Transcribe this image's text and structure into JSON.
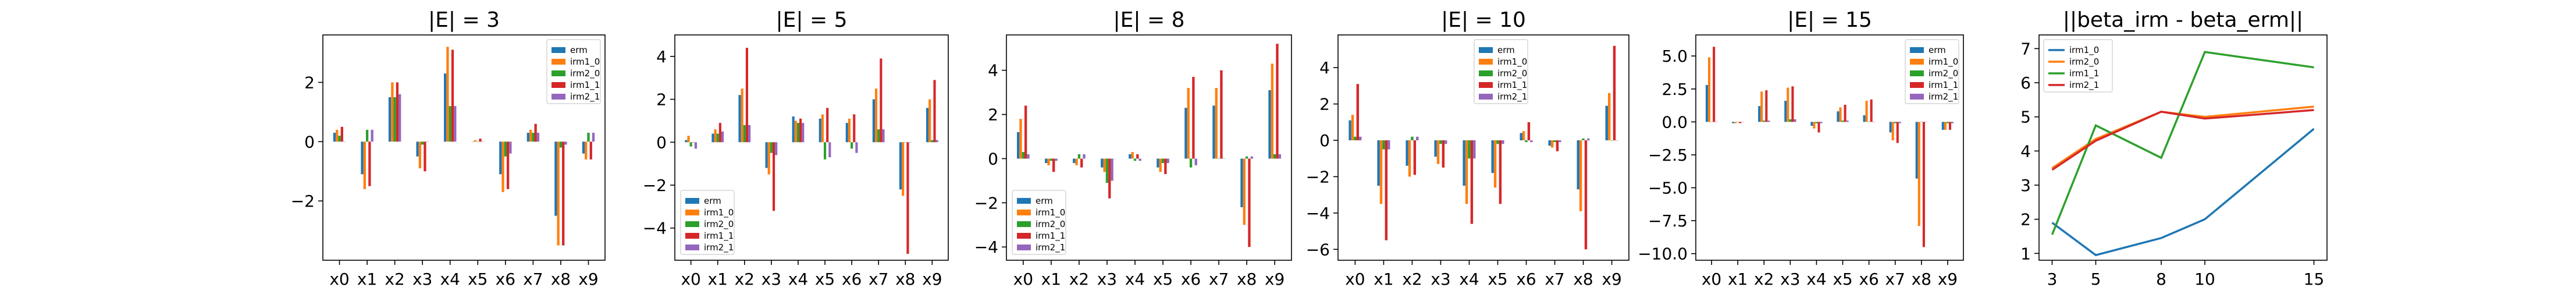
{
  "colors": {
    "erm": "#1f77b4",
    "irm1_0": "#ff7f0e",
    "irm2_0": "#2ca02c",
    "irm1_1": "#d62728",
    "irm2_1": "#9467bd"
  },
  "chart_data": [
    {
      "type": "bar",
      "title": "|E| = 3",
      "categories": [
        "x0",
        "x1",
        "x2",
        "x3",
        "x4",
        "x5",
        "x6",
        "x7",
        "x8",
        "x9"
      ],
      "ylim": [
        -4.0,
        3.6
      ],
      "yticks": [
        -2,
        0,
        2
      ],
      "grid": false,
      "legend_position": "top-right",
      "series": [
        {
          "name": "erm",
          "values": [
            0.3,
            -1.1,
            1.5,
            -0.5,
            2.3,
            0.0,
            -1.1,
            0.3,
            -2.5,
            -0.4
          ]
        },
        {
          "name": "irm1_0",
          "values": [
            0.4,
            -1.6,
            2.0,
            -0.9,
            3.2,
            0.05,
            -1.7,
            0.4,
            -3.5,
            -0.6
          ]
        },
        {
          "name": "irm2_0",
          "values": [
            0.2,
            0.4,
            1.5,
            -0.1,
            1.2,
            0.0,
            -0.5,
            0.3,
            -0.2,
            0.3
          ]
        },
        {
          "name": "irm1_1",
          "values": [
            0.5,
            -1.5,
            2.0,
            -1.0,
            3.1,
            0.1,
            -1.6,
            0.6,
            -3.5,
            -0.6
          ]
        },
        {
          "name": "irm2_1",
          "values": [
            0.0,
            0.4,
            1.6,
            0.0,
            1.2,
            0.0,
            -0.4,
            0.3,
            -0.1,
            0.3
          ]
        }
      ]
    },
    {
      "type": "bar",
      "title": "|E| = 5",
      "categories": [
        "x0",
        "x1",
        "x2",
        "x3",
        "x4",
        "x5",
        "x6",
        "x7",
        "x8",
        "x9"
      ],
      "ylim": [
        -5.5,
        5.0
      ],
      "yticks": [
        -4,
        -2,
        0,
        2,
        4
      ],
      "grid": false,
      "legend_position": "bottom-left",
      "series": [
        {
          "name": "erm",
          "values": [
            0.1,
            0.4,
            2.2,
            -1.2,
            1.2,
            1.1,
            0.9,
            2.0,
            -2.2,
            1.6
          ]
        },
        {
          "name": "irm1_0",
          "values": [
            0.3,
            0.6,
            2.5,
            -1.5,
            1.0,
            1.3,
            1.1,
            2.5,
            -2.5,
            2.0
          ]
        },
        {
          "name": "irm2_0",
          "values": [
            -0.2,
            0.4,
            0.8,
            -0.5,
            0.9,
            -0.8,
            -0.3,
            0.6,
            0.0,
            0.1
          ]
        },
        {
          "name": "irm1_1",
          "values": [
            0.0,
            0.9,
            4.4,
            -3.2,
            1.1,
            1.6,
            1.3,
            3.9,
            -5.2,
            2.9
          ]
        },
        {
          "name": "irm2_1",
          "values": [
            -0.3,
            0.5,
            0.8,
            -0.6,
            0.9,
            -0.7,
            -0.5,
            0.6,
            0.0,
            0.1
          ]
        }
      ]
    },
    {
      "type": "bar",
      "title": "|E| = 8",
      "categories": [
        "x0",
        "x1",
        "x2",
        "x3",
        "x4",
        "x5",
        "x6",
        "x7",
        "x8",
        "x9"
      ],
      "ylim": [
        -4.6,
        5.6
      ],
      "yticks": [
        -4,
        -2,
        0,
        2,
        4
      ],
      "grid": false,
      "legend_position": "bottom-left",
      "series": [
        {
          "name": "erm",
          "values": [
            1.2,
            -0.2,
            -0.2,
            -0.4,
            0.2,
            -0.4,
            2.3,
            2.4,
            -2.2,
            3.1
          ]
        },
        {
          "name": "irm1_0",
          "values": [
            1.8,
            -0.3,
            -0.3,
            -0.6,
            0.3,
            -0.6,
            3.2,
            3.2,
            -3.0,
            4.3
          ]
        },
        {
          "name": "irm2_0",
          "values": [
            0.3,
            -0.1,
            0.2,
            -1.1,
            -0.1,
            -0.2,
            -0.4,
            0.0,
            0.1,
            0.2
          ]
        },
        {
          "name": "irm1_1",
          "values": [
            2.4,
            -0.6,
            -0.4,
            -1.8,
            0.2,
            -0.7,
            3.7,
            4.0,
            -4.0,
            5.2
          ]
        },
        {
          "name": "irm2_1",
          "values": [
            0.2,
            -0.1,
            0.2,
            -1.0,
            -0.1,
            -0.2,
            -0.3,
            0.0,
            0.1,
            0.2
          ]
        }
      ]
    },
    {
      "type": "bar",
      "title": "|E| = 10",
      "categories": [
        "x0",
        "x1",
        "x2",
        "x3",
        "x4",
        "x5",
        "x6",
        "x7",
        "x8",
        "x9"
      ],
      "ylim": [
        -6.6,
        5.8
      ],
      "yticks": [
        -6,
        -4,
        -2,
        0,
        2,
        4
      ],
      "grid": false,
      "legend_position": "top-center",
      "series": [
        {
          "name": "erm",
          "values": [
            1.1,
            -2.5,
            -1.4,
            -0.9,
            -2.5,
            -1.8,
            0.4,
            -0.3,
            -2.7,
            1.9
          ]
        },
        {
          "name": "irm1_0",
          "values": [
            1.4,
            -3.5,
            -2.0,
            -1.3,
            -3.5,
            -2.6,
            0.5,
            -0.4,
            -3.9,
            2.6
          ]
        },
        {
          "name": "irm2_0",
          "values": [
            0.2,
            -0.5,
            0.2,
            -0.2,
            -1.0,
            -0.2,
            -0.1,
            -0.1,
            0.1,
            0.0
          ]
        },
        {
          "name": "irm1_1",
          "values": [
            3.1,
            -5.5,
            -1.9,
            -1.5,
            -4.6,
            -3.5,
            1.0,
            -0.6,
            -6.0,
            5.2
          ]
        },
        {
          "name": "irm2_1",
          "values": [
            0.2,
            -0.5,
            0.2,
            -0.2,
            -1.0,
            -0.2,
            -0.1,
            -0.1,
            0.1,
            0.0
          ]
        }
      ]
    },
    {
      "type": "bar",
      "title": "|E| = 15",
      "categories": [
        "x0",
        "x1",
        "x2",
        "x3",
        "x4",
        "x5",
        "x6",
        "x7",
        "x8",
        "x9"
      ],
      "ylim": [
        -10.5,
        6.6
      ],
      "yticks": [
        -10.0,
        -7.5,
        -5.0,
        -2.5,
        0.0,
        2.5,
        5.0
      ],
      "tick_labels": [
        "−10.0",
        "−7.5",
        "−5.0",
        "−2.5",
        "0.0",
        "2.5",
        "5.0"
      ],
      "grid": false,
      "legend_position": "top-right",
      "series": [
        {
          "name": "erm",
          "values": [
            2.8,
            -0.1,
            1.2,
            1.6,
            -0.3,
            0.8,
            0.5,
            -0.8,
            -4.3,
            -0.6
          ]
        },
        {
          "name": "irm1_0",
          "values": [
            4.9,
            -0.1,
            2.3,
            2.6,
            -0.5,
            1.1,
            1.6,
            -1.4,
            -7.9,
            -0.6
          ]
        },
        {
          "name": "irm2_0",
          "values": [
            0.0,
            0.0,
            0.1,
            0.2,
            -0.1,
            0.1,
            0.0,
            -0.1,
            0.0,
            -0.1
          ]
        },
        {
          "name": "irm1_1",
          "values": [
            5.7,
            -0.1,
            2.4,
            2.7,
            -0.8,
            1.3,
            1.7,
            -1.6,
            -9.5,
            -0.6
          ]
        },
        {
          "name": "irm2_1",
          "values": [
            0.0,
            0.0,
            0.1,
            0.2,
            -0.1,
            0.1,
            0.0,
            -0.1,
            0.0,
            -0.1
          ]
        }
      ]
    },
    {
      "type": "line",
      "title": "||beta_irm - beta_erm||",
      "x": [
        3,
        5,
        8,
        10,
        15
      ],
      "xticks": [
        3,
        5,
        8,
        10,
        15
      ],
      "ylim": [
        0.8,
        7.4
      ],
      "yticks": [
        1,
        2,
        3,
        4,
        5,
        6,
        7
      ],
      "grid": false,
      "legend_position": "top-left",
      "series": [
        {
          "name": "irm1_0",
          "values": [
            1.9,
            0.95,
            1.45,
            2.0,
            4.65
          ]
        },
        {
          "name": "irm2_0",
          "values": [
            3.5,
            4.35,
            5.15,
            5.0,
            5.3
          ]
        },
        {
          "name": "irm1_1",
          "values": [
            1.55,
            4.75,
            3.8,
            6.9,
            6.45
          ]
        },
        {
          "name": "irm2_1",
          "values": [
            3.45,
            4.3,
            5.15,
            4.95,
            5.2
          ]
        }
      ]
    }
  ]
}
